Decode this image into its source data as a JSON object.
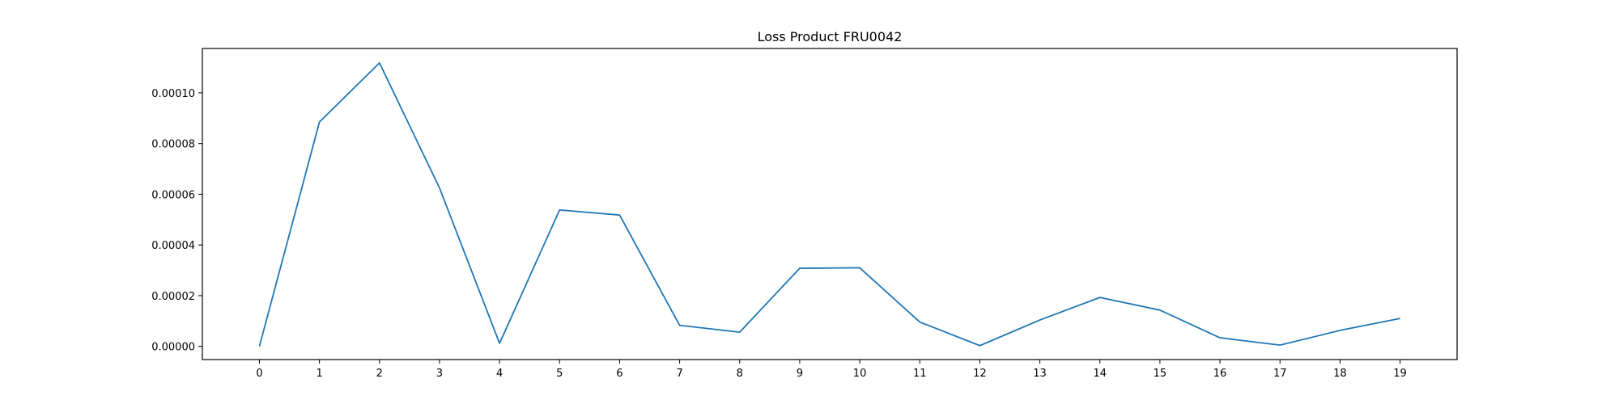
{
  "chart_data": {
    "type": "line",
    "title": "Loss Product FRU0042",
    "xlabel": "",
    "ylabel": "",
    "x": [
      0,
      1,
      2,
      3,
      4,
      5,
      6,
      7,
      8,
      9,
      10,
      11,
      12,
      13,
      14,
      15,
      16,
      17,
      18,
      19
    ],
    "x_tick_labels": [
      "0",
      "1",
      "2",
      "3",
      "4",
      "5",
      "6",
      "7",
      "8",
      "9",
      "10",
      "11",
      "12",
      "13",
      "14",
      "15",
      "16",
      "17",
      "18",
      "19"
    ],
    "series": [
      {
        "values": [
          0.0,
          8.85e-05,
          0.0001118,
          6.25e-05,
          1.2e-06,
          5.38e-05,
          5.18e-05,
          8.3e-06,
          5.6e-06,
          3.08e-05,
          3.1e-05,
          9.6e-06,
          3e-07,
          1.04e-05,
          1.93e-05,
          1.43e-05,
          3.4e-06,
          5e-07,
          6.3e-06,
          1.1e-05
        ],
        "color": "#1f77b4"
      }
    ],
    "y_ticks": [
      0.0,
      2e-05,
      4e-05,
      6e-05,
      8e-05,
      0.0001
    ],
    "y_tick_labels": [
      "0.00000",
      "0.00002",
      "0.00004",
      "0.00006",
      "0.00008",
      "0.00010"
    ],
    "xlim": [
      -0.95,
      19.95
    ],
    "ylim": [
      -5.2e-06,
      0.0001175
    ],
    "grid": false,
    "legend": "none"
  }
}
